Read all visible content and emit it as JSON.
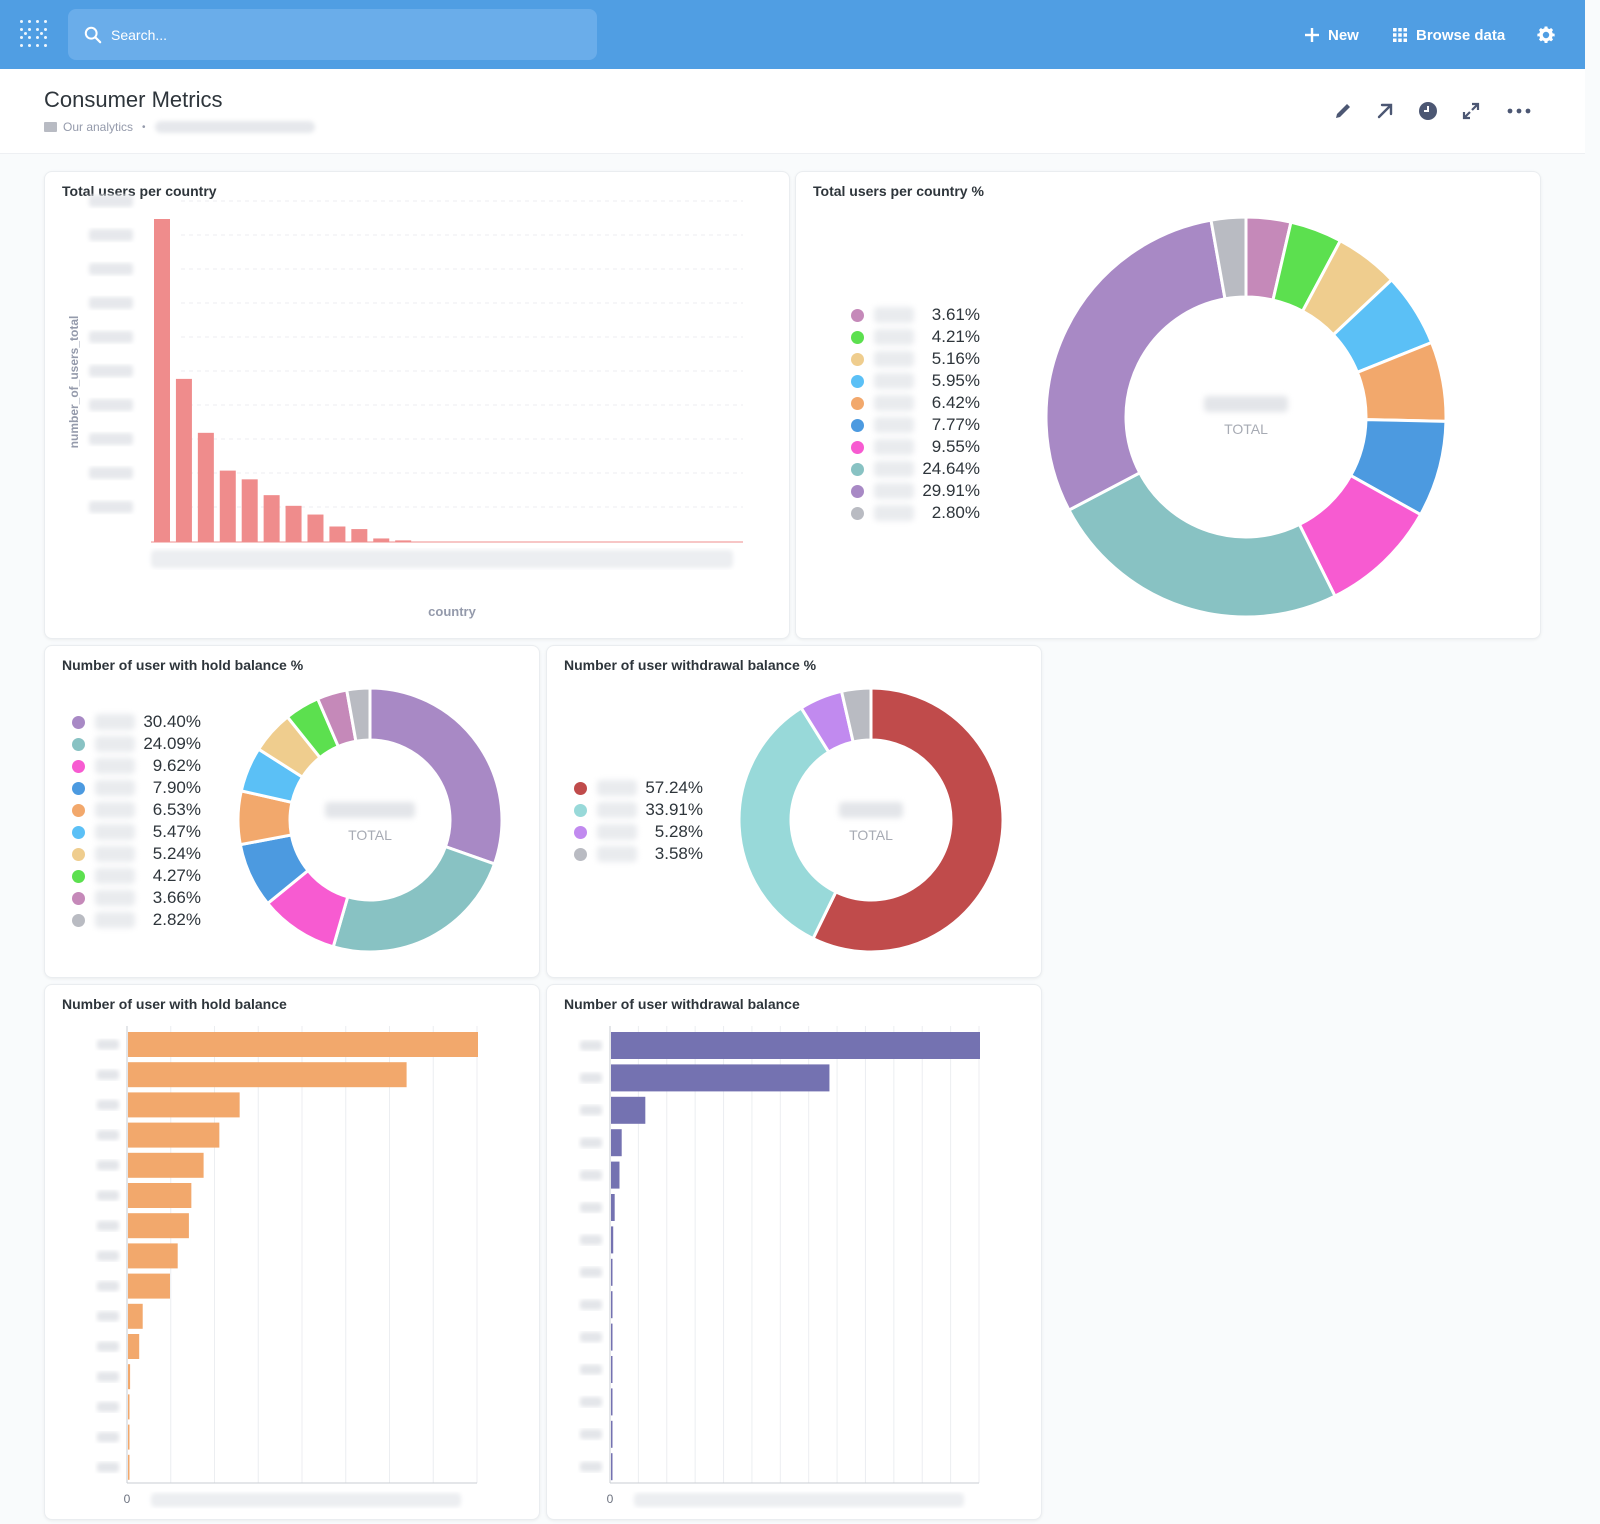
{
  "navbar": {
    "search_placeholder": "Search...",
    "new_label": "New",
    "browse_label": "Browse data"
  },
  "dashboard": {
    "title": "Consumer Metrics",
    "breadcrumb": "Our analytics"
  },
  "cards": {
    "users_per_country": {
      "title": "Total users per country",
      "ylabel": "number_of_users_total",
      "xlabel": "country"
    },
    "users_per_country_pct": {
      "title": "Total users per country %",
      "total_label": "TOTAL"
    },
    "hold_balance_pct": {
      "title": "Number of user with hold balance %",
      "total_label": "TOTAL"
    },
    "withdrawal_balance_pct": {
      "title": "Number of user withdrawal balance %",
      "total_label": "TOTAL"
    },
    "hold_balance": {
      "title": "Number of user with hold balance",
      "x_zero": "0"
    },
    "withdrawal_balance": {
      "title": "Number of user withdrawal balance",
      "x_zero": "0"
    }
  },
  "chart_data": [
    {
      "id": "users_per_country",
      "type": "bar",
      "xlabel": "country",
      "ylabel": "number_of_users_total",
      "color": "#ef8c8c",
      "values": [
        100,
        50.5,
        33.8,
        22.1,
        19.4,
        14.5,
        11.2,
        8.5,
        4.8,
        4.0,
        1.1,
        0.5
      ]
    },
    {
      "id": "users_per_country_pct",
      "type": "pie",
      "center_label": "TOTAL",
      "slices": [
        {
          "pct": "3.61%",
          "value": 3.61,
          "color": "#c589b9"
        },
        {
          "pct": "4.21%",
          "value": 4.21,
          "color": "#5ce04f"
        },
        {
          "pct": "5.16%",
          "value": 5.16,
          "color": "#efcd8e"
        },
        {
          "pct": "5.95%",
          "value": 5.95,
          "color": "#5bc0f6"
        },
        {
          "pct": "6.42%",
          "value": 6.42,
          "color": "#f2a86c"
        },
        {
          "pct": "7.77%",
          "value": 7.77,
          "color": "#4c9ae0"
        },
        {
          "pct": "9.55%",
          "value": 9.55,
          "color": "#f75bd1"
        },
        {
          "pct": "24.64%",
          "value": 24.64,
          "color": "#88c2c3"
        },
        {
          "pct": "29.91%",
          "value": 29.91,
          "color": "#a889c5"
        },
        {
          "pct": "2.80%",
          "value": 2.8,
          "color": "#b9bbc2"
        }
      ]
    },
    {
      "id": "hold_balance_pct",
      "type": "pie",
      "center_label": "TOTAL",
      "slices": [
        {
          "pct": "30.40%",
          "value": 30.4,
          "color": "#a889c5"
        },
        {
          "pct": "24.09%",
          "value": 24.09,
          "color": "#88c2c3"
        },
        {
          "pct": "9.62%",
          "value": 9.62,
          "color": "#f75bd1"
        },
        {
          "pct": "7.90%",
          "value": 7.9,
          "color": "#4c9ae0"
        },
        {
          "pct": "6.53%",
          "value": 6.53,
          "color": "#f2a86c"
        },
        {
          "pct": "5.47%",
          "value": 5.47,
          "color": "#5bc0f6"
        },
        {
          "pct": "5.24%",
          "value": 5.24,
          "color": "#efcd8e"
        },
        {
          "pct": "4.27%",
          "value": 4.27,
          "color": "#5ce04f"
        },
        {
          "pct": "3.66%",
          "value": 3.66,
          "color": "#c589b9"
        },
        {
          "pct": "2.82%",
          "value": 2.82,
          "color": "#b9bbc2"
        }
      ]
    },
    {
      "id": "withdrawal_balance_pct",
      "type": "pie",
      "center_label": "TOTAL",
      "slices": [
        {
          "pct": "57.24%",
          "value": 57.24,
          "color": "#c04b4b"
        },
        {
          "pct": "33.91%",
          "value": 33.91,
          "color": "#98d9d9"
        },
        {
          "pct": "5.28%",
          "value": 5.28,
          "color": "#c18aef"
        },
        {
          "pct": "3.58%",
          "value": 3.58,
          "color": "#b9bbc2"
        }
      ]
    },
    {
      "id": "hold_balance",
      "type": "bar",
      "orientation": "horizontal",
      "color": "#f2a86c",
      "x_zero": "0",
      "values": [
        100,
        79.6,
        31.9,
        26.1,
        21.6,
        18.1,
        17.4,
        14.2,
        12.0,
        4.2,
        3.2,
        0.6,
        0.4,
        0.4,
        0.3
      ]
    },
    {
      "id": "withdrawal_balance",
      "type": "bar",
      "orientation": "horizontal",
      "color": "#7472b1",
      "x_zero": "0",
      "values": [
        100,
        59.2,
        9.3,
        2.9,
        2.3,
        1.0,
        0.6,
        0.3,
        0.2,
        0.1,
        0.1,
        0.1,
        0.1,
        0.1
      ]
    }
  ]
}
